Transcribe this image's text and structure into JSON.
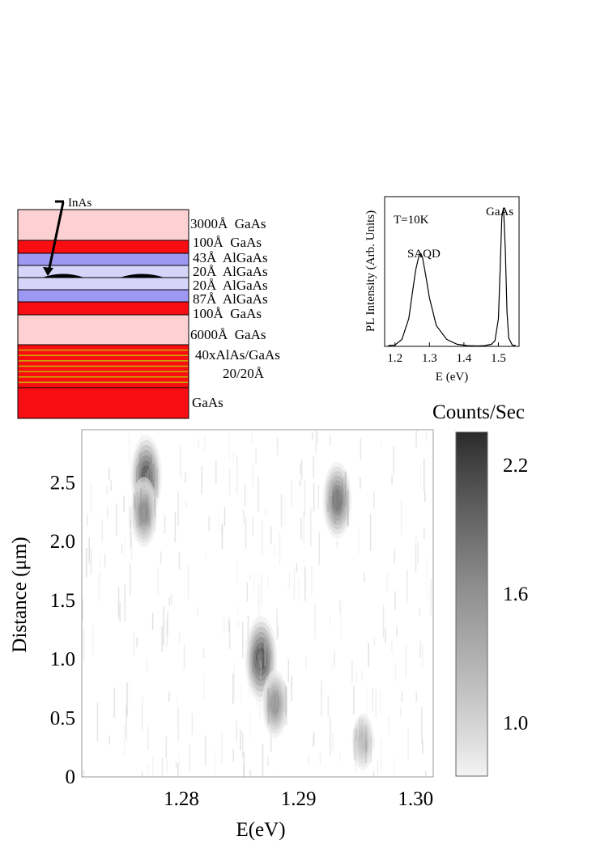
{
  "layer_stack": {
    "annotation": "InAs",
    "layers": [
      {
        "label": "3000Å  GaAs",
        "color": "#fdd0d2"
      },
      {
        "label": "100Å  GaAs",
        "color": "#f80e12"
      },
      {
        "label": "43Å  AlGaAs",
        "color": "#9d99f2"
      },
      {
        "label": "20Å  AlGaAs",
        "color": "#d6d4f8"
      },
      {
        "label": "20Å  AlGaAs",
        "color": "#d6d4f8"
      },
      {
        "label": "87Å  AlGaAs",
        "color": "#9d99f2"
      },
      {
        "label": "100Å  GaAs",
        "color": "#f80e12"
      },
      {
        "label": "6000Å  GaAs",
        "color": "#fdd0d2"
      },
      {
        "label": "40xAlAs/GaAs",
        "color": "#f80e12"
      },
      {
        "label": "20/20Å",
        "color": "#f80e12"
      },
      {
        "label": "GaAs",
        "color": "#f80e12"
      }
    ],
    "superlattice_line_color": "#c8b400"
  },
  "chart_data": [
    {
      "type": "line",
      "xlabel": "E (eV)",
      "ylabel": "PL Intensity (Arb. Units)",
      "xlim": [
        1.17,
        1.56
      ],
      "ylim": [
        0,
        1.08
      ],
      "xticks": [
        "1.2",
        "1.3",
        "1.4",
        "1.5"
      ],
      "xtick_values": [
        1.2,
        1.3,
        1.4,
        1.5
      ],
      "annotations": [
        "T=10K",
        "SAQD",
        "GaAs"
      ],
      "x": [
        1.18,
        1.2,
        1.22,
        1.24,
        1.25,
        1.26,
        1.27,
        1.275,
        1.28,
        1.29,
        1.3,
        1.32,
        1.35,
        1.38,
        1.41,
        1.44,
        1.46,
        1.48,
        1.49,
        1.5,
        1.505,
        1.51,
        1.515,
        1.52,
        1.525,
        1.53,
        1.54,
        1.55
      ],
      "y": [
        0.005,
        0.01,
        0.05,
        0.2,
        0.38,
        0.55,
        0.66,
        0.67,
        0.64,
        0.5,
        0.35,
        0.15,
        0.05,
        0.015,
        0.005,
        0.003,
        0.005,
        0.015,
        0.04,
        0.2,
        0.55,
        0.93,
        1.0,
        0.7,
        0.25,
        0.06,
        0.01,
        0.005
      ],
      "grid": false
    },
    {
      "type": "heatmap",
      "xlabel": "E(eV)",
      "ylabel": "Distance (μm)",
      "xlim": [
        1.2715,
        1.3015
      ],
      "ylim": [
        0,
        2.95
      ],
      "xticks": [
        "1.28",
        "1.29",
        "1.30"
      ],
      "xtick_values": [
        1.28,
        1.29,
        1.3
      ],
      "yticks": [
        "0",
        "0.5",
        "1.0",
        "1.5",
        "2.0",
        "2.5"
      ],
      "ytick_values": [
        0,
        0.5,
        1.0,
        1.5,
        2.0,
        2.5
      ],
      "colorbar": {
        "label": "Counts/Sec",
        "ticks": [
          "1.0",
          "1.6",
          "2.2"
        ],
        "tick_values": [
          1.0,
          1.6,
          2.2
        ],
        "range": [
          0.75,
          2.35
        ]
      },
      "spots": [
        {
          "energy": 1.277,
          "distance": 2.55,
          "intensity": 0.85
        },
        {
          "energy": 1.2768,
          "distance": 2.25,
          "intensity": 0.55
        },
        {
          "energy": 1.2933,
          "distance": 2.35,
          "intensity": 0.7
        },
        {
          "energy": 1.2868,
          "distance": 1.0,
          "intensity": 0.9
        },
        {
          "energy": 1.288,
          "distance": 0.62,
          "intensity": 0.5
        },
        {
          "energy": 1.2955,
          "distance": 0.3,
          "intensity": 0.25
        }
      ],
      "grid": false
    }
  ]
}
